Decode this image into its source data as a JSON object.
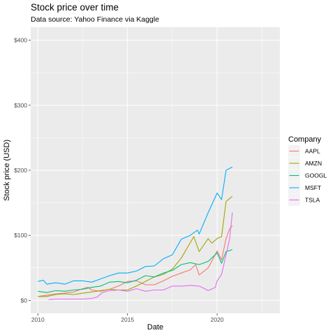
{
  "chart_data": {
    "type": "line",
    "title": "Stock price over time",
    "subtitle": "Data source: Yahoo Finance via Kaggle",
    "xlabel": "Date",
    "ylabel": "Stock price (USD)",
    "xlim": [
      2009.6,
      2023.5
    ],
    "ylim": [
      -20,
      420
    ],
    "x_ticks": [
      2010,
      2015,
      2020
    ],
    "x_tick_labels": [
      "2010",
      "2015",
      "2020"
    ],
    "y_ticks": [
      0,
      100,
      200,
      300,
      400
    ],
    "y_tick_labels": [
      "$0",
      "$100",
      "$200",
      "$300",
      "$400"
    ],
    "grid": true,
    "legend": {
      "title": "Company",
      "position": "right"
    },
    "series": [
      {
        "name": "AAPL",
        "color": "#f8766d",
        "points": [
          [
            2010.0,
            6
          ],
          [
            2010.5,
            8
          ],
          [
            2011.0,
            10
          ],
          [
            2011.5,
            11
          ],
          [
            2012.0,
            13
          ],
          [
            2012.5,
            18
          ],
          [
            2012.8,
            20
          ],
          [
            2013.0,
            16
          ],
          [
            2013.5,
            14
          ],
          [
            2014.0,
            17
          ],
          [
            2014.5,
            22
          ],
          [
            2015.0,
            29
          ],
          [
            2015.5,
            30
          ],
          [
            2016.0,
            24
          ],
          [
            2016.5,
            24
          ],
          [
            2017.0,
            30
          ],
          [
            2017.5,
            37
          ],
          [
            2018.0,
            42
          ],
          [
            2018.5,
            47
          ],
          [
            2018.8,
            55
          ],
          [
            2019.0,
            39
          ],
          [
            2019.5,
            50
          ],
          [
            2020.0,
            76
          ],
          [
            2020.25,
            62
          ],
          [
            2020.5,
            95
          ],
          [
            2020.7,
            110
          ],
          [
            2020.85,
            115
          ]
        ]
      },
      {
        "name": "AMZN",
        "color": "#a3a500",
        "points": [
          [
            2010.0,
            6
          ],
          [
            2010.5,
            6
          ],
          [
            2011.0,
            9
          ],
          [
            2011.5,
            10
          ],
          [
            2012.0,
            9
          ],
          [
            2012.5,
            11
          ],
          [
            2013.0,
            13
          ],
          [
            2013.5,
            15
          ],
          [
            2014.0,
            17
          ],
          [
            2014.5,
            16
          ],
          [
            2015.0,
            16
          ],
          [
            2015.5,
            22
          ],
          [
            2016.0,
            29
          ],
          [
            2016.5,
            36
          ],
          [
            2017.0,
            40
          ],
          [
            2017.5,
            48
          ],
          [
            2018.0,
            65
          ],
          [
            2018.7,
            98
          ],
          [
            2019.0,
            75
          ],
          [
            2019.5,
            95
          ],
          [
            2019.7,
            88
          ],
          [
            2020.0,
            95
          ],
          [
            2020.25,
            98
          ],
          [
            2020.5,
            152
          ],
          [
            2020.85,
            160
          ]
        ]
      },
      {
        "name": "GOOGL",
        "color": "#00bf7d",
        "points": [
          [
            2010.0,
            14
          ],
          [
            2010.5,
            12
          ],
          [
            2011.0,
            15
          ],
          [
            2011.5,
            14
          ],
          [
            2012.0,
            16
          ],
          [
            2012.5,
            17
          ],
          [
            2013.0,
            20
          ],
          [
            2013.5,
            22
          ],
          [
            2014.0,
            28
          ],
          [
            2014.5,
            29
          ],
          [
            2015.0,
            27
          ],
          [
            2015.5,
            31
          ],
          [
            2016.0,
            38
          ],
          [
            2016.5,
            36
          ],
          [
            2017.0,
            42
          ],
          [
            2017.5,
            46
          ],
          [
            2018.0,
            55
          ],
          [
            2018.5,
            58
          ],
          [
            2019.0,
            55
          ],
          [
            2019.5,
            60
          ],
          [
            2020.0,
            73
          ],
          [
            2020.25,
            57
          ],
          [
            2020.5,
            75
          ],
          [
            2020.85,
            78
          ]
        ]
      },
      {
        "name": "MSFT",
        "color": "#00b0f6",
        "points": [
          [
            2010.0,
            29
          ],
          [
            2010.3,
            31
          ],
          [
            2010.5,
            25
          ],
          [
            2011.0,
            27
          ],
          [
            2011.5,
            25
          ],
          [
            2012.0,
            30
          ],
          [
            2012.5,
            30
          ],
          [
            2013.0,
            28
          ],
          [
            2013.5,
            33
          ],
          [
            2014.0,
            38
          ],
          [
            2014.5,
            42
          ],
          [
            2015.0,
            42
          ],
          [
            2015.5,
            45
          ],
          [
            2016.0,
            52
          ],
          [
            2016.5,
            53
          ],
          [
            2017.0,
            64
          ],
          [
            2017.5,
            70
          ],
          [
            2018.0,
            94
          ],
          [
            2018.5,
            100
          ],
          [
            2018.9,
            108
          ],
          [
            2019.0,
            102
          ],
          [
            2019.5,
            135
          ],
          [
            2020.0,
            165
          ],
          [
            2020.25,
            155
          ],
          [
            2020.5,
            200
          ],
          [
            2020.85,
            205
          ]
        ]
      },
      {
        "name": "TSLA",
        "color": "#e76bf3",
        "points": [
          [
            2010.6,
            1
          ],
          [
            2011.0,
            2
          ],
          [
            2011.5,
            2
          ],
          [
            2012.0,
            2
          ],
          [
            2012.5,
            2
          ],
          [
            2013.0,
            3
          ],
          [
            2013.3,
            5
          ],
          [
            2013.6,
            12
          ],
          [
            2014.0,
            15
          ],
          [
            2014.5,
            16
          ],
          [
            2015.0,
            14
          ],
          [
            2015.5,
            18
          ],
          [
            2016.0,
            14
          ],
          [
            2016.5,
            16
          ],
          [
            2017.0,
            16
          ],
          [
            2017.5,
            22
          ],
          [
            2018.0,
            22
          ],
          [
            2018.5,
            23
          ],
          [
            2019.0,
            22
          ],
          [
            2019.3,
            18
          ],
          [
            2019.5,
            15
          ],
          [
            2019.9,
            20
          ],
          [
            2020.0,
            30
          ],
          [
            2020.25,
            40
          ],
          [
            2020.5,
            70
          ],
          [
            2020.7,
            95
          ],
          [
            2020.85,
            135
          ]
        ]
      }
    ]
  }
}
